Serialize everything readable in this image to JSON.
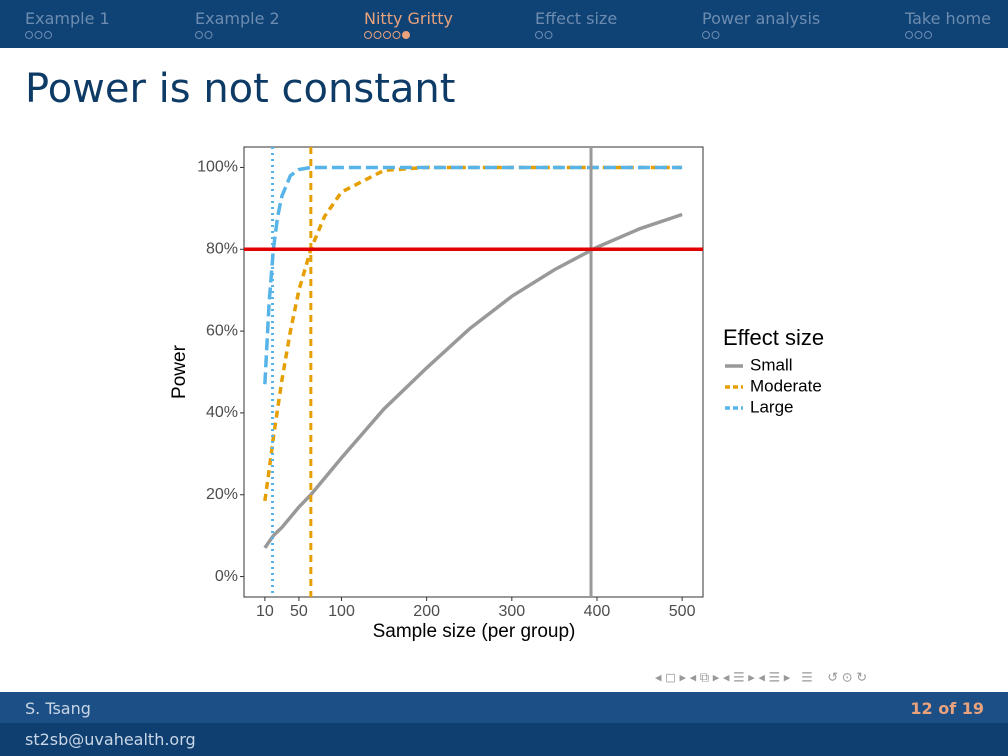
{
  "nav": [
    {
      "label": "Example 1",
      "frames": 3
    },
    {
      "label": "Example 2",
      "frames": 2
    },
    {
      "label": "Nitty Gritty",
      "frames": 5,
      "current_frame": 5
    },
    {
      "label": "Effect size",
      "frames": 2
    },
    {
      "label": "Power analysis",
      "frames": 2
    },
    {
      "label": "Take home",
      "frames": 3
    }
  ],
  "slide_title": "Power is not constant",
  "footer": {
    "author": "S. Tsang",
    "page": "12 of 19",
    "email": "st2sb@uvahealth.org"
  },
  "chart_data": {
    "type": "line",
    "x_label": "Sample size (per group)",
    "y_label": "Power",
    "x": [
      10,
      15,
      20,
      25,
      30,
      40,
      50,
      64,
      80,
      100,
      150,
      200,
      250,
      300,
      350,
      400,
      450,
      500
    ],
    "series": [
      {
        "name": "Small",
        "color": "#999999",
        "dash": "solid",
        "values": [
          7,
          8.5,
          10,
          11,
          12,
          14.5,
          17,
          20,
          24,
          29,
          41,
          51,
          60.5,
          68.5,
          75,
          80.5,
          85,
          88.5
        ]
      },
      {
        "name": "Moderate",
        "color": "#e69f00",
        "dash": "dashed",
        "values": [
          18.5,
          26,
          34,
          41,
          48,
          60,
          70,
          80,
          88,
          94,
          99.3,
          100,
          100,
          100,
          100,
          100,
          100,
          100
        ]
      },
      {
        "name": "Large",
        "color": "#56b4e9",
        "dash": "longdash",
        "values": [
          47,
          67,
          80,
          88,
          93,
          98,
          99.5,
          100,
          100,
          100,
          100,
          100,
          100,
          100,
          100,
          100,
          100,
          100
        ]
      }
    ],
    "hlines": [
      {
        "value": 80,
        "color": "#e00000",
        "dash": "solid"
      }
    ],
    "vlines": [
      {
        "value": 393,
        "color": "#999999",
        "dash": "solid"
      },
      {
        "value": 64,
        "color": "#e69f00",
        "dash": "dashed"
      },
      {
        "value": 19,
        "color": "#56b4e9",
        "dash": "dotted"
      }
    ],
    "xlim": [
      -14.5,
      524.5
    ],
    "xticks": [
      10,
      50,
      100,
      200,
      300,
      400,
      500
    ],
    "ylim": [
      -5,
      105
    ],
    "yticks": [
      {
        "value": 0,
        "label": "0%"
      },
      {
        "value": 20,
        "label": "20%"
      },
      {
        "value": 40,
        "label": "40%"
      },
      {
        "value": 60,
        "label": "60%"
      },
      {
        "value": 80,
        "label": "80%"
      },
      {
        "value": 100,
        "label": "100%"
      }
    ],
    "legend_title": "Effect size",
    "legend": "right"
  }
}
